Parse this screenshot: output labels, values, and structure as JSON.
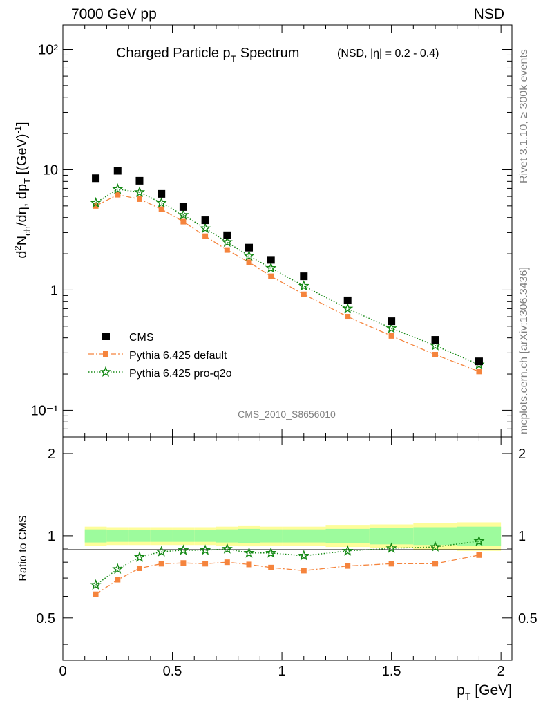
{
  "header": {
    "left": "7000 GeV pp",
    "right": "NSD",
    "title_main": "Charged Particle p",
    "title_sub": "T",
    "title_tail": " Spectrum",
    "title_note": "(NSD, |η| = 0.2 - 0.4)"
  },
  "side": {
    "rivet": "Rivet 3.1.10, ≥ 300k events",
    "mcplots": "mcplots.cern.ch [arXiv:1306.3436]"
  },
  "watermark": "CMS_2010_S8656010",
  "colors": {
    "cms": "#000000",
    "default": "#f5843d",
    "proq2o": "#138813",
    "band_inner": "#9dfb9d",
    "band_outer": "#fdfd9a"
  },
  "chart_data": [
    {
      "type": "scatter",
      "panel": "main",
      "ylabel": "d²N_ch/dη, dp_T [(GeV)⁻¹]",
      "yscale": "log",
      "ylim": [
        0.06,
        160
      ],
      "xlim": [
        0,
        2.05
      ],
      "y_ticks": [
        "10⁻¹",
        "1",
        "10",
        "10²"
      ],
      "x": [
        0.15,
        0.25,
        0.35,
        0.45,
        0.55,
        0.65,
        0.75,
        0.85,
        0.95,
        1.1,
        1.3,
        1.5,
        1.7,
        1.9
      ],
      "legend_position": "lower-left",
      "series": [
        {
          "name": "CMS",
          "marker": "square",
          "values": [
            8.5,
            9.8,
            8.1,
            6.3,
            4.9,
            3.8,
            2.85,
            2.25,
            1.78,
            1.3,
            0.82,
            0.55,
            0.385,
            0.255
          ]
        },
        {
          "name": "Pythia 6.425 default",
          "marker": "small-square",
          "line": "dash-dot",
          "values": [
            5.0,
            6.2,
            5.7,
            4.7,
            3.7,
            2.8,
            2.15,
            1.7,
            1.3,
            0.92,
            0.6,
            0.415,
            0.29,
            0.21
          ]
        },
        {
          "name": "Pythia 6.425 pro-q2o",
          "marker": "star",
          "line": "dotted",
          "values": [
            5.3,
            6.9,
            6.5,
            5.3,
            4.2,
            3.25,
            2.5,
            1.92,
            1.52,
            1.08,
            0.7,
            0.48,
            0.345,
            0.24
          ]
        }
      ]
    },
    {
      "type": "line",
      "panel": "ratio",
      "ylabel": "Ratio to CMS",
      "ylim": [
        0.35,
        2.3
      ],
      "xlim": [
        0,
        2.05
      ],
      "xlabel_main": "p",
      "xlabel_sub": "T",
      "xlabel_tail": " [GeV]",
      "x_ticks": [
        "0",
        "0.5",
        "1",
        "1.5",
        "2"
      ],
      "y_ticks": [
        "0.5",
        "1",
        "2"
      ],
      "x": [
        0.15,
        0.25,
        0.35,
        0.45,
        0.55,
        0.65,
        0.75,
        0.85,
        0.95,
        1.1,
        1.3,
        1.5,
        1.7,
        1.9
      ],
      "band_edges": [
        0.1,
        0.2,
        0.3,
        0.4,
        0.5,
        0.6,
        0.7,
        0.8,
        0.9,
        1.0,
        1.2,
        1.4,
        1.6,
        1.8,
        2.0
      ],
      "band_inner": [
        0.055,
        0.05,
        0.05,
        0.05,
        0.05,
        0.05,
        0.055,
        0.06,
        0.055,
        0.055,
        0.06,
        0.07,
        0.075,
        0.08
      ],
      "band_outer": [
        0.08,
        0.075,
        0.075,
        0.075,
        0.075,
        0.075,
        0.08,
        0.085,
        0.08,
        0.08,
        0.09,
        0.1,
        0.11,
        0.12
      ],
      "series": [
        {
          "name": "Pythia 6.425 default",
          "values": [
            0.61,
            0.69,
            0.76,
            0.79,
            0.795,
            0.79,
            0.8,
            0.785,
            0.765,
            0.745,
            0.775,
            0.79,
            0.79,
            0.85
          ]
        },
        {
          "name": "Pythia 6.425 pro-q2o",
          "values": [
            0.66,
            0.755,
            0.835,
            0.875,
            0.885,
            0.885,
            0.895,
            0.865,
            0.865,
            0.845,
            0.88,
            0.9,
            0.91,
            0.955
          ]
        }
      ]
    }
  ]
}
